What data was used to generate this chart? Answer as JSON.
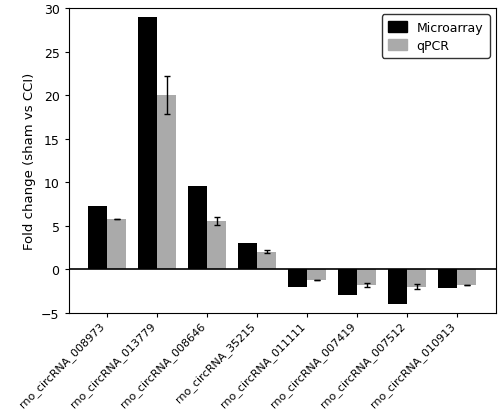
{
  "categories": [
    "rno_circRNA_008973",
    "rno_circRNA_013779",
    "rno_circRNA_008646",
    "rno_circRNA_35215",
    "rno_circRNA_011111",
    "rno_circRNA_007419",
    "rno_circRNA_007512",
    "rno_circRNA_010913"
  ],
  "microarray": [
    7.3,
    29.0,
    9.5,
    3.0,
    -2.0,
    -3.0,
    -4.0,
    -2.2
  ],
  "qpcr": [
    5.8,
    20.0,
    5.5,
    2.0,
    -1.2,
    -1.8,
    -2.0,
    -1.8
  ],
  "qpcr_err": [
    0.0,
    2.2,
    0.45,
    0.15,
    0.0,
    0.25,
    0.25,
    0.0
  ],
  "microarray_color": "#000000",
  "qpcr_color": "#aaaaaa",
  "ylabel": "Fold change (sham vs CCI)",
  "ylim": [
    -5,
    30
  ],
  "yticks": [
    -5,
    0,
    5,
    10,
    15,
    20,
    25,
    30
  ],
  "legend_labels": [
    "Microarray",
    "qPCR"
  ],
  "bar_width": 0.38
}
